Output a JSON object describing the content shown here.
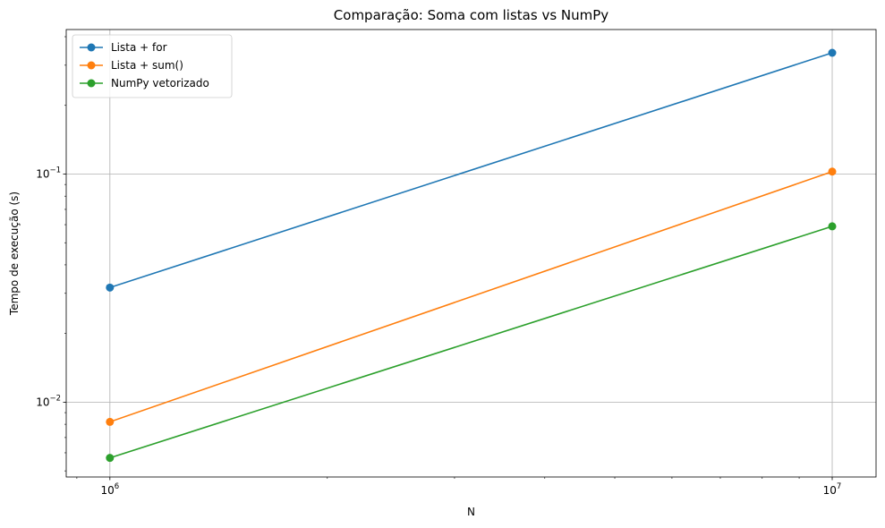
{
  "chart_data": {
    "type": "line",
    "title": "Comparação: Soma com listas vs NumPy",
    "xlabel": "N",
    "ylabel": "Tempo de execução (s)",
    "xscale": "log",
    "yscale": "log",
    "xlim": [
      870000,
      11500000
    ],
    "ylim": [
      0.0047,
      0.43
    ],
    "grid": true,
    "legend_position": "upper-left",
    "x": [
      1000000,
      10000000
    ],
    "x_ticks": [
      {
        "value": 1000000,
        "base": "10",
        "exp": "6"
      },
      {
        "value": 10000000,
        "base": "10",
        "exp": "7"
      }
    ],
    "y_ticks": [
      {
        "value": 0.01,
        "base": "10",
        "exp": "−2"
      },
      {
        "value": 0.1,
        "base": "10",
        "exp": "−1"
      }
    ],
    "series": [
      {
        "name": "Lista + for",
        "color": "#1f77b4",
        "values": [
          0.0318,
          0.34
        ]
      },
      {
        "name": "Lista + sum()",
        "color": "#ff7f0e",
        "values": [
          0.0082,
          0.1025
        ]
      },
      {
        "name": "NumPy vetorizado",
        "color": "#2ca02c",
        "values": [
          0.0057,
          0.059
        ]
      }
    ]
  }
}
